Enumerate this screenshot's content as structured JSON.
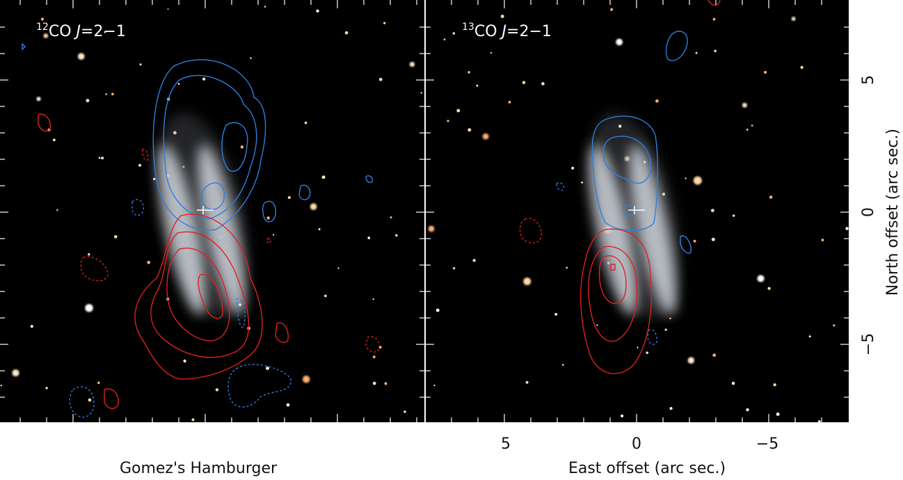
{
  "panels": [
    {
      "isotope": "12",
      "molecule": "CO",
      "transition_symbol": "J",
      "transition": "=2−1"
    },
    {
      "isotope": "13",
      "molecule": "CO",
      "transition_symbol": "J",
      "transition": "=2−1"
    }
  ],
  "object_name": "Gomez's Hamburger",
  "x_axis": {
    "label": "East offset (arc sec.)",
    "tick_labels": [
      "5",
      "0",
      "−5"
    ]
  },
  "y_axis": {
    "label": "North offset (arc sec.)",
    "tick_labels": [
      "5",
      "0",
      "−5"
    ]
  }
}
